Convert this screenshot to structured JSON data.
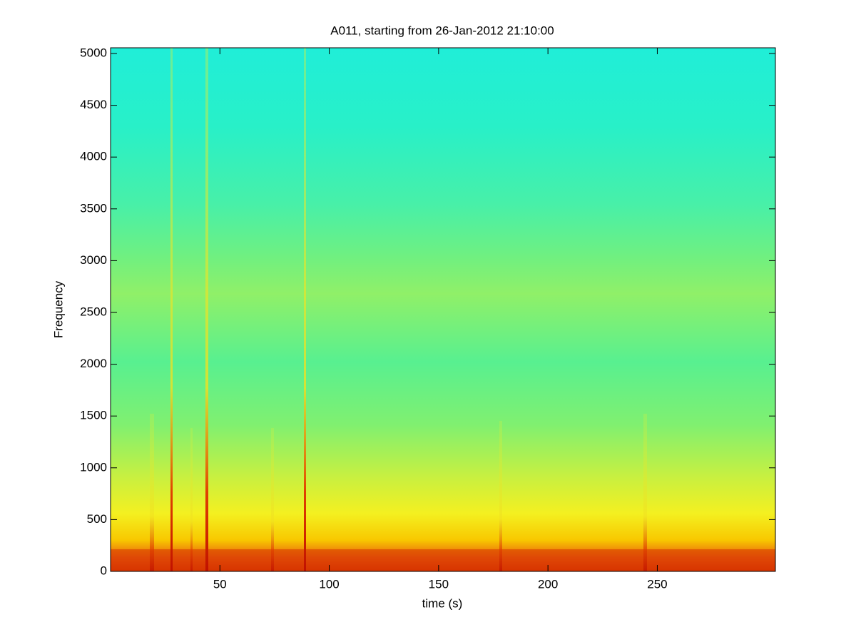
{
  "chart_data": {
    "type": "spectrogram",
    "title": "A011, starting from 26-Jan-2012 21:10:00",
    "x_label": "time (s)",
    "y_label": "Frequency",
    "xlim": [
      0,
      304
    ],
    "xticks": [
      50,
      100,
      150,
      200,
      250
    ],
    "ylim": [
      0,
      5055
    ],
    "yticks": [
      0,
      500,
      1000,
      1500,
      2000,
      2500,
      3000,
      3500,
      4000,
      4500,
      5000
    ]
  }
}
